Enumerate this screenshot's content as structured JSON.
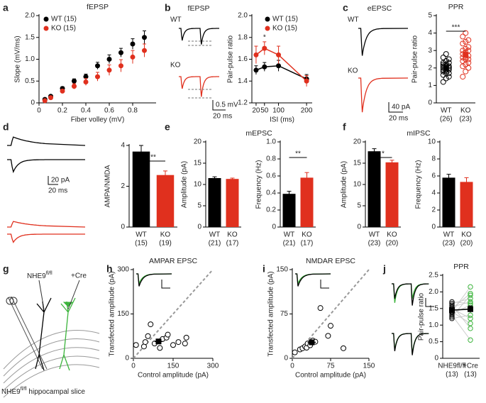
{
  "panels": [
    "a",
    "b",
    "c",
    "d",
    "e",
    "f",
    "g",
    "h",
    "i",
    "j"
  ],
  "traces": [
    {
      "title": "fEPSP",
      "labels": [
        "WT",
        "KO"
      ],
      "scale": [
        "0.5 mV",
        "20 ms"
      ]
    },
    {
      "title": "eEPSC",
      "labels": [
        "WT",
        "KO"
      ],
      "scale": [
        "40 pA",
        "20 ms"
      ]
    },
    {
      "scale": [
        "20 pA",
        "20 ms"
      ]
    }
  ],
  "diagram": {
    "labels": [
      [
        "NHE9",
        "fl/fl"
      ],
      "+Cre"
    ],
    "caption": [
      "NHE9",
      "fl/fl",
      " hippocampal slice"
    ]
  },
  "chart_data": [
    {
      "type": "scatter",
      "title": "fEPSP",
      "xlabel": "Fiber volley (mV)",
      "ylabel": "Slope (mV/ms)",
      "xlim": [
        0,
        1
      ],
      "xticks": [
        0,
        0.2,
        0.4,
        0.6,
        0.8
      ],
      "ylim": [
        0,
        2
      ],
      "yticks": [
        0,
        0.5,
        {
          "value": 1,
          "label": "1.0"
        },
        1.5,
        {
          "value": 2,
          "label": "2.0"
        }
      ],
      "series": [
        {
          "name": "WT (15)",
          "color": "#000000",
          "x": [
            0.05,
            0.1,
            0.2,
            0.3,
            0.4,
            0.5,
            0.6,
            0.7,
            0.8,
            0.9
          ],
          "values": [
            0.08,
            0.15,
            0.33,
            0.5,
            0.6,
            0.85,
            1.0,
            1.15,
            1.35,
            1.5
          ],
          "errors": [
            0.02,
            0.03,
            0.04,
            0.05,
            0.06,
            0.08,
            0.1,
            0.1,
            0.12,
            0.15
          ]
        },
        {
          "name": "KO (15)",
          "color": "#e0301e",
          "x": [
            0.05,
            0.1,
            0.2,
            0.3,
            0.4,
            0.5,
            0.6,
            0.7,
            0.8,
            0.9
          ],
          "values": [
            0.05,
            0.12,
            0.27,
            0.38,
            0.48,
            0.6,
            0.75,
            0.85,
            1.05,
            1.2
          ],
          "errors": [
            0.02,
            0.03,
            0.04,
            0.06,
            0.08,
            0.1,
            0.12,
            0.14,
            0.15,
            0.15
          ]
        }
      ]
    },
    {
      "type": "line",
      "xlabel": "ISI (ms)",
      "ylabel": "Pair-pulse ratio",
      "annotation": "*",
      "xlim": [
        5,
        220
      ],
      "xticks": [
        20,
        50,
        100,
        200
      ],
      "ylim": [
        1.2,
        2
      ],
      "yticks": [
        1.2,
        1.4,
        1.6,
        1.8,
        {
          "value": 2,
          "label": "2.0"
        }
      ],
      "series": [
        {
          "name": "WT (15)",
          "color": "#000000",
          "x": [
            20,
            50,
            100,
            200
          ],
          "values": [
            1.5,
            1.53,
            1.54,
            1.42
          ],
          "errors": [
            0.04,
            0.04,
            0.05,
            0.04
          ]
        },
        {
          "name": "KO (15)",
          "color": "#e0301e",
          "x": [
            20,
            50,
            100,
            200
          ],
          "values": [
            1.64,
            1.7,
            1.64,
            1.4
          ],
          "errors": [
            0.08,
            0.06,
            0.08,
            0.05
          ]
        }
      ]
    },
    {
      "type": "dot",
      "title": "PPR",
      "ylabel": "Pair-pulse ratio",
      "annotation": "***",
      "ylim": [
        0,
        5
      ],
      "yticks": [
        0,
        1,
        2,
        3,
        4,
        5
      ],
      "categories": [
        "WT",
        "KO"
      ],
      "n_labels": [
        "(26)",
        "(23)"
      ],
      "colors": [
        "#000000",
        "#e0301e"
      ],
      "values": [
        2.0,
        2.75
      ],
      "errors": [
        0.1,
        0.15
      ],
      "points": [
        [
          1.2,
          1.4,
          1.5,
          1.6,
          1.7,
          1.7,
          1.8,
          1.8,
          1.9,
          1.9,
          1.9,
          2.0,
          2.0,
          2.0,
          2.0,
          2.1,
          2.1,
          2.1,
          2.2,
          2.2,
          2.3,
          2.3,
          2.4,
          2.5,
          2.6,
          2.8
        ],
        [
          1.5,
          1.8,
          2.0,
          2.1,
          2.2,
          2.3,
          2.4,
          2.5,
          2.5,
          2.6,
          2.6,
          2.7,
          2.8,
          2.9,
          3.0,
          3.0,
          3.1,
          3.2,
          3.4,
          3.5,
          3.6,
          3.8,
          4.0
        ]
      ]
    },
    {
      "type": "bar",
      "ylabel": "AMPA/NMDA",
      "annotation": "**",
      "ylim": [
        0,
        4
      ],
      "yticks": [
        0,
        2,
        4
      ],
      "categories": [
        "WT",
        "KO"
      ],
      "n_labels": [
        "(15)",
        "(19)"
      ],
      "colors": [
        "#000000",
        "#e0301e"
      ],
      "values": [
        3.7,
        2.55
      ],
      "errors": [
        0.3,
        0.2
      ]
    },
    {
      "type": "bar",
      "title": "mEPSC",
      "ylabel": "Amplitude (pA)",
      "ylim": [
        0,
        20
      ],
      "yticks": [
        0,
        5,
        10,
        15,
        20
      ],
      "categories": [
        "WT",
        "KO"
      ],
      "n_labels": [
        "(21)",
        "(17)"
      ],
      "colors": [
        "#000000",
        "#e0301e"
      ],
      "values": [
        11.5,
        11.3
      ],
      "errors": [
        0.3,
        0.2
      ]
    },
    {
      "type": "bar",
      "ylabel": "Frequency (Hz)",
      "annotation": "**",
      "ylim": [
        0,
        1
      ],
      "yticks": [
        0,
        0.2,
        0.4,
        0.6,
        0.8,
        {
          "value": 1,
          "label": "1.0"
        }
      ],
      "categories": [
        "WT",
        "KO"
      ],
      "n_labels": [
        "(21)",
        "(17)"
      ],
      "colors": [
        "#000000",
        "#e0301e"
      ],
      "values": [
        0.39,
        0.58
      ],
      "errors": [
        0.03,
        0.06
      ]
    },
    {
      "type": "bar",
      "title": "mIPSC",
      "ylabel": "Amplitude (pA)",
      "annotation": "*",
      "ylim": [
        0,
        20
      ],
      "yticks": [
        0,
        5,
        10,
        15,
        20
      ],
      "categories": [
        "WT",
        "KO"
      ],
      "n_labels": [
        "(23)",
        "(20)"
      ],
      "colors": [
        "#000000",
        "#e0301e"
      ],
      "values": [
        17.8,
        15.2
      ],
      "errors": [
        0.6,
        0.5
      ]
    },
    {
      "type": "bar",
      "ylabel": "Frequency (Hz)",
      "ylim": [
        0,
        10
      ],
      "yticks": [
        0,
        2,
        4,
        6,
        8,
        10
      ],
      "categories": [
        "WT",
        "KO"
      ],
      "n_labels": [
        "(23)",
        "(20)"
      ],
      "colors": [
        "#000000",
        "#e0301e"
      ],
      "values": [
        5.8,
        5.3
      ],
      "errors": [
        0.4,
        0.5
      ]
    },
    {
      "type": "scatter_xy",
      "title": "AMPAR EPSC",
      "xlabel": "Control amplitude (pA)",
      "ylabel": "Transfected amplitude (pA)",
      "xlim": [
        0,
        300
      ],
      "xticks": [
        0,
        150,
        300
      ],
      "ylim": [
        0,
        300
      ],
      "yticks": [
        0,
        150,
        300
      ],
      "x": [
        10,
        40,
        45,
        55,
        65,
        80,
        100,
        110,
        125,
        130,
        150,
        170,
        195,
        200
      ],
      "y": [
        45,
        40,
        55,
        75,
        115,
        50,
        35,
        65,
        70,
        80,
        45,
        55,
        50,
        70
      ],
      "mean": {
        "x": 95,
        "y": 57,
        "xerr": 15,
        "yerr": 8
      }
    },
    {
      "type": "scatter_xy",
      "title": "NMDAR EPSC",
      "xlabel": "Control amplitude (pA)",
      "ylabel": "Transfected amplitude (pA)",
      "xlim": [
        0,
        150
      ],
      "xticks": [
        0,
        75,
        150
      ],
      "ylim": [
        0,
        150
      ],
      "yticks": [
        0,
        75,
        150
      ],
      "x": [
        5,
        15,
        20,
        25,
        28,
        30,
        35,
        40,
        45,
        55,
        70,
        75,
        100
      ],
      "y": [
        10,
        15,
        17,
        20,
        18,
        25,
        22,
        30,
        28,
        85,
        38,
        55,
        17
      ],
      "mean": {
        "x": 38,
        "y": 27,
        "xerr": 8,
        "yerr": 5
      }
    },
    {
      "type": "paired",
      "title": "PPR",
      "ylabel": "Pair-pulse ratio",
      "ylim": [
        0,
        2.5
      ],
      "yticks": [
        0,
        0.5,
        {
          "value": 1,
          "label": "1.0"
        },
        1.5,
        {
          "value": 2,
          "label": "2.0"
        },
        2.5
      ],
      "categories": [
        "NHE9fl/fl",
        "+Cre"
      ],
      "n_labels": [
        "(13)",
        "(13)"
      ],
      "colors": [
        "#000000",
        "#3cb43c"
      ],
      "before": [
        1.2,
        1.25,
        1.3,
        1.35,
        1.4,
        1.4,
        1.45,
        1.5,
        1.5,
        1.55,
        1.6,
        1.65,
        1.7
      ],
      "after": [
        1.3,
        1.9,
        0.55,
        1.6,
        1.05,
        2.15,
        1.5,
        1.2,
        1.95,
        1.7,
        0.9,
        1.8,
        1.65
      ],
      "values": [
        1.45,
        1.48
      ],
      "errors": [
        0.05,
        0.1
      ]
    }
  ]
}
